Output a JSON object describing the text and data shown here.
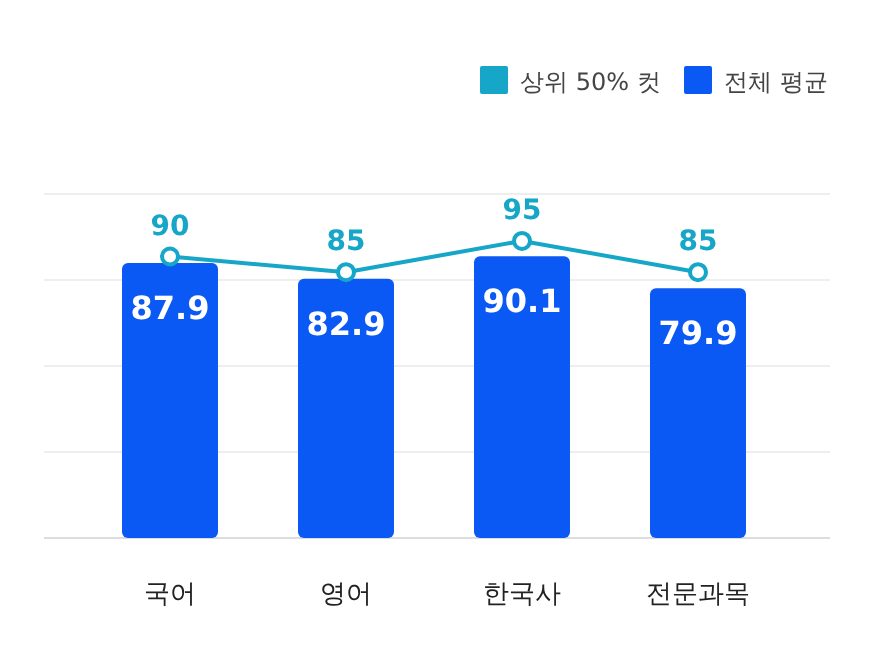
{
  "chart_data": {
    "type": "bar",
    "categories": [
      "국어",
      "영어",
      "한국사",
      "전문과목"
    ],
    "series": [
      {
        "name": "상위 50% 컷",
        "type": "line",
        "color": "#15a6c8",
        "values": [
          90,
          85,
          95,
          85
        ],
        "marker": "circle"
      },
      {
        "name": "전체 평균",
        "color": "#0a59f4",
        "values": [
          87.9,
          82.9,
          90.1,
          79.9
        ]
      }
    ],
    "ylim": [
      0,
      110
    ],
    "yticks": [
      {
        "value": 0,
        "label": null
      },
      {
        "value": 27.5,
        "label": null
      },
      {
        "value": 55,
        "label": null
      },
      {
        "value": 82.5,
        "label": null
      },
      {
        "value": 110,
        "label": null
      }
    ],
    "grid": "y",
    "legend": "top right",
    "data_labels": true
  }
}
